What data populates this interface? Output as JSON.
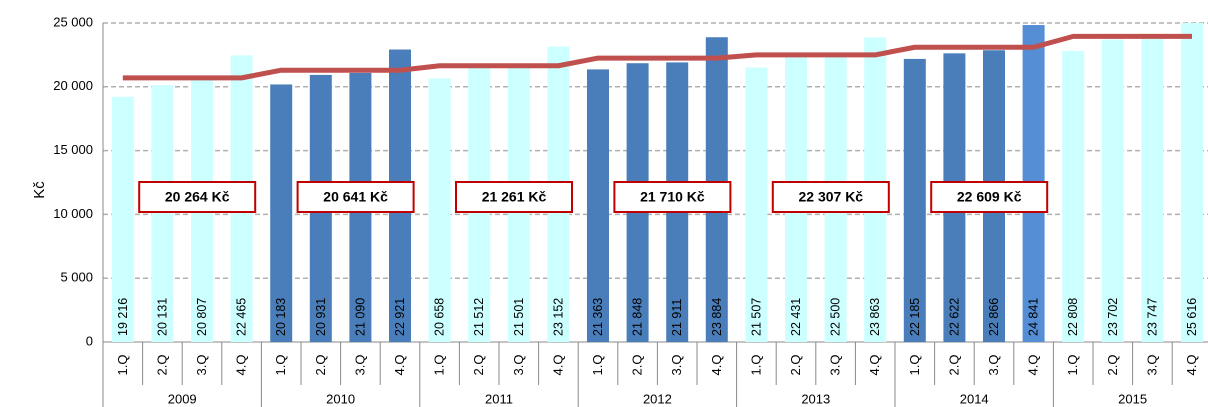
{
  "chart_data": {
    "type": "bar",
    "ylabel": "Kč",
    "ylim": [
      0,
      25000
    ],
    "yticks": [
      {
        "value": 0,
        "label": "0"
      },
      {
        "value": 5000,
        "label": "5 000"
      },
      {
        "value": 10000,
        "label": "10 000"
      },
      {
        "value": 15000,
        "label": "15 000"
      },
      {
        "value": 20000,
        "label": "20 000"
      },
      {
        "value": 25000,
        "label": "25 000"
      }
    ],
    "grid": true,
    "years": [
      "2009",
      "2010",
      "2011",
      "2012",
      "2013",
      "2014",
      "2015"
    ],
    "categories": [
      "1.Q",
      "2.Q",
      "3.Q",
      "4.Q",
      "1.Q",
      "2.Q",
      "3.Q",
      "4.Q",
      "1.Q",
      "2.Q",
      "3.Q",
      "4.Q",
      "1.Q",
      "2.Q",
      "3.Q",
      "4.Q",
      "1.Q",
      "2.Q",
      "3.Q",
      "4.Q",
      "1.Q",
      "2.Q",
      "3.Q",
      "4.Q",
      "1.Q",
      "2.Q",
      "3.Q",
      "4.Q"
    ],
    "values": [
      19216,
      20131,
      20807,
      22465,
      20183,
      20931,
      21090,
      22921,
      20658,
      21512,
      21501,
      23152,
      21363,
      21848,
      21911,
      23884,
      21507,
      22431,
      22500,
      23863,
      22185,
      22622,
      22866,
      24841,
      22808,
      23702,
      23747,
      25616
    ],
    "value_labels": [
      "19 216",
      "20 131",
      "20 807",
      "22 465",
      "20 183",
      "20 931",
      "21 090",
      "22 921",
      "20 658",
      "21 512",
      "21 501",
      "23 152",
      "21 363",
      "21 848",
      "21 911",
      "23 884",
      "21 507",
      "22 431",
      "22 500",
      "23 863",
      "22 185",
      "22 622",
      "22 866",
      "24 841",
      "22 808",
      "23 702",
      "23 747",
      "25 616"
    ],
    "bar_colors": [
      "#ccffff",
      "#ccffff",
      "#ccffff",
      "#ccffff",
      "#4a7ebb",
      "#4a7ebb",
      "#4a7ebb",
      "#4a7ebb",
      "#ccffff",
      "#ccffff",
      "#ccffff",
      "#ccffff",
      "#4a7ebb",
      "#4a7ebb",
      "#4a7ebb",
      "#4a7ebb",
      "#ccffff",
      "#ccffff",
      "#ccffff",
      "#ccffff",
      "#4a7ebb",
      "#4a7ebb",
      "#4a7ebb",
      "#558ed5",
      "#ccffff",
      "#ccffff",
      "#ccffff",
      "#ccffff"
    ],
    "line": {
      "color": "#c0504d",
      "values": [
        20700,
        20700,
        20700,
        20700,
        21300,
        21300,
        21300,
        21300,
        21650,
        21650,
        21650,
        21650,
        22250,
        22250,
        22250,
        22250,
        22500,
        22500,
        22500,
        22500,
        23100,
        23100,
        23100,
        23100,
        23950,
        23950,
        23950,
        23950
      ]
    },
    "annual": {
      "color": "#c00000",
      "values": [
        20264,
        20641,
        21261,
        21710,
        22307,
        22609
      ],
      "value_labels": [
        "20 264 Kč",
        "20 641 Kč",
        "21 261 Kč",
        "21 710 Kč",
        "22 307 Kč",
        "22 609 Kč"
      ]
    }
  }
}
